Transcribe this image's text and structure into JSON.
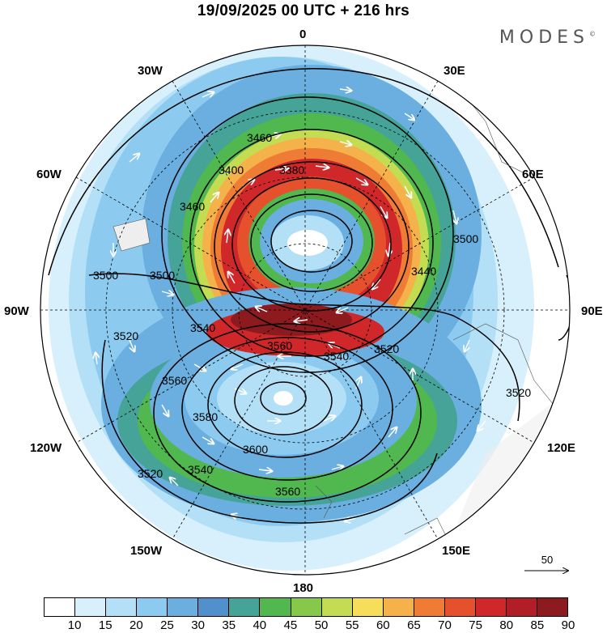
{
  "header": {
    "title": "19/09/2025  00 UTC  + 216 hrs",
    "brand": "MODES"
  },
  "map": {
    "lon_labels": {
      "n0": "0",
      "n30e": "30E",
      "n60e": "60E",
      "n90e": "90E",
      "n120e": "120E",
      "n150e": "150E",
      "n180": "180",
      "n150w": "150W",
      "n120w": "120W",
      "n90w": "90W",
      "n60w": "60W",
      "n30w": "30W"
    },
    "contour_labels": [
      "3460",
      "3380",
      "3400",
      "3460",
      "3500",
      "3440",
      "3500",
      "3500",
      "3520",
      "3540",
      "3560",
      "3540",
      "3520",
      "3560",
      "3580",
      "3600",
      "3520",
      "3540",
      "3560",
      "3520"
    ],
    "reference_vector": "50"
  },
  "colorbar": {
    "colors": [
      "#ffffff",
      "#d7f0fb",
      "#b3e0f7",
      "#8ccbef",
      "#6aafe0",
      "#4f90cd",
      "#45a397",
      "#50b84e",
      "#86c94a",
      "#c4dc52",
      "#f6de5a",
      "#f5b24a",
      "#ef7c35",
      "#e4512c",
      "#d0282a",
      "#b21e27",
      "#8c1a1f"
    ],
    "ticks": [
      "10",
      "15",
      "20",
      "25",
      "30",
      "35",
      "40",
      "45",
      "50",
      "55",
      "60",
      "65",
      "70",
      "75",
      "80",
      "85",
      "90"
    ]
  }
}
